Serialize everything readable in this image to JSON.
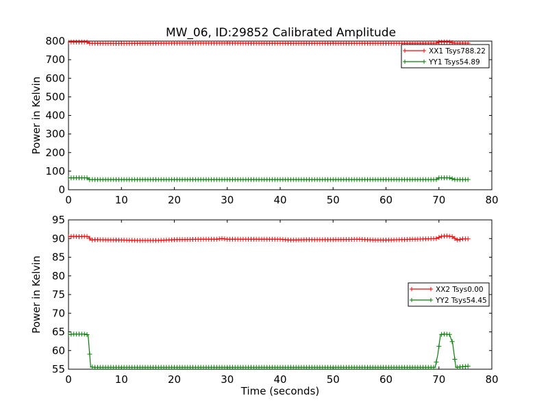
{
  "title": "MW_06, ID:29852 Calibrated Amplitude",
  "chart_data": [
    {
      "type": "line",
      "title": "MW_06, ID:29852 Calibrated Amplitude",
      "xlabel": "",
      "ylabel": "Power in Kelvin",
      "xlim": [
        0,
        80
      ],
      "ylim": [
        0,
        800
      ],
      "xticks": [
        0,
        10,
        20,
        30,
        40,
        50,
        60,
        70,
        80
      ],
      "yticks": [
        0,
        100,
        200,
        300,
        400,
        500,
        600,
        700,
        800
      ],
      "grid": false,
      "legend_position": "upper right",
      "series": [
        {
          "name": "XX1 Tsys788.22",
          "color": "#ff0000",
          "marker": "+",
          "x": [
            0,
            3.5,
            4,
            10,
            20,
            30,
            40,
            50,
            60,
            69.5,
            70,
            72,
            73,
            75.5
          ],
          "y": [
            795,
            795,
            788,
            787,
            789,
            789,
            788,
            788,
            788,
            789,
            795,
            795,
            789,
            789
          ]
        },
        {
          "name": "YY1 Tsys54.89",
          "color": "#008000",
          "marker": "+",
          "x": [
            0,
            3.5,
            4,
            10,
            20,
            30,
            40,
            50,
            60,
            69.5,
            70,
            72,
            73,
            75.5
          ],
          "y": [
            64,
            64,
            55,
            55,
            55,
            55,
            55,
            55,
            55,
            55,
            64,
            64,
            55,
            55
          ]
        }
      ]
    },
    {
      "type": "line",
      "title": "",
      "xlabel": "Time (seconds)",
      "ylabel": "Power in Kelvin",
      "xlim": [
        0,
        80
      ],
      "ylim": [
        55,
        95
      ],
      "xticks": [
        0,
        10,
        20,
        30,
        40,
        50,
        60,
        70,
        80
      ],
      "yticks": [
        55,
        60,
        65,
        70,
        75,
        80,
        85,
        90,
        95
      ],
      "grid": false,
      "legend_position": "center right",
      "series": [
        {
          "name": "XX2 Tsys0.00",
          "color": "#ff0000",
          "marker": "+",
          "x": [
            0,
            1,
            2,
            3,
            3.8,
            4.2,
            5,
            10,
            13,
            17,
            20,
            25,
            28,
            29,
            30,
            35,
            40,
            42,
            45,
            50,
            55,
            58,
            60,
            65,
            69.5,
            70.5,
            71.5,
            72.5,
            73.5,
            74.5,
            75.5
          ],
          "y": [
            90.5,
            90.6,
            90.5,
            90.6,
            90.5,
            89.6,
            89.7,
            89.6,
            89.5,
            89.5,
            89.7,
            89.8,
            89.8,
            90.0,
            89.8,
            89.8,
            89.8,
            89.6,
            89.7,
            89.7,
            89.8,
            89.6,
            89.6,
            89.8,
            90.0,
            90.6,
            90.7,
            90.5,
            89.6,
            89.9,
            89.9
          ]
        },
        {
          "name": "YY2 Tsys54.45",
          "color": "#008000",
          "marker": "+",
          "x": [
            0,
            1,
            2,
            3,
            3.7,
            4.2,
            5,
            10,
            15,
            20,
            25,
            30,
            35,
            40,
            45,
            50,
            55,
            60,
            65,
            69.3,
            69.8,
            70.3,
            71,
            72,
            72.6,
            73.2,
            74,
            75.5
          ],
          "y": [
            64.3,
            64.4,
            64.4,
            64.4,
            64.2,
            55.6,
            55.5,
            55.5,
            55.5,
            55.5,
            55.5,
            55.5,
            55.5,
            55.5,
            55.5,
            55.5,
            55.5,
            55.5,
            55.5,
            55.5,
            59.0,
            64.3,
            64.4,
            64.3,
            62.0,
            55.5,
            55.6,
            55.8
          ]
        }
      ]
    }
  ]
}
